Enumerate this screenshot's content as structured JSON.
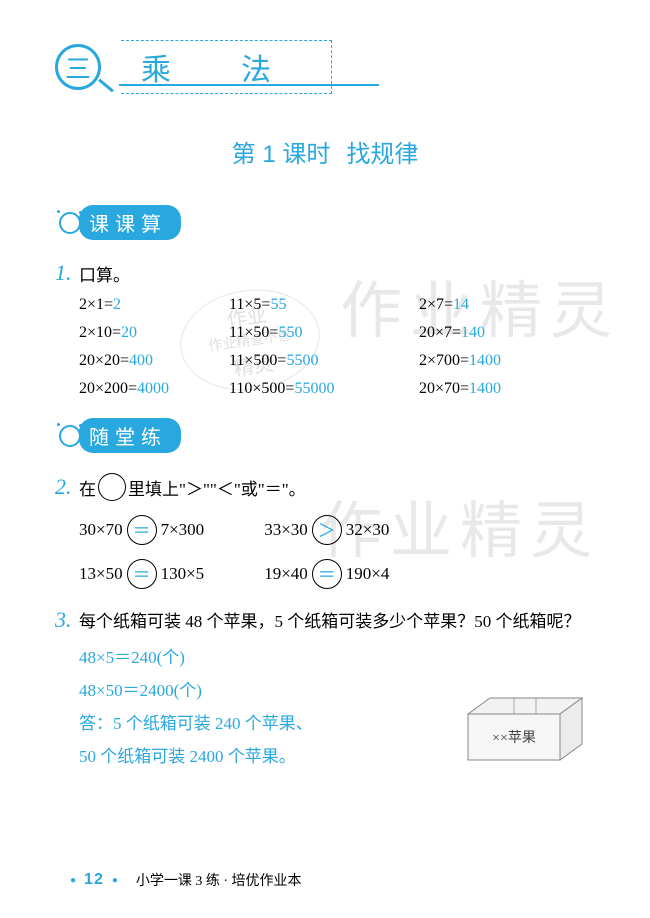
{
  "colors": {
    "accent": "#29a7df",
    "answer": "#29a7df",
    "text": "#000000",
    "watermark": "#e8e8e8"
  },
  "chapter": {
    "number": "三",
    "title": "乘　法"
  },
  "lesson": {
    "title_prefix": "第 1 课时",
    "title_main": "找规律"
  },
  "sections": {
    "kekesuan": "课课算",
    "suitanglian": "随堂练"
  },
  "q1": {
    "label": "1.",
    "prompt": "口算。",
    "rows": [
      [
        {
          "expr": "2×1=",
          "ans": "2"
        },
        {
          "expr": "11×5=",
          "ans": "55"
        },
        {
          "expr": "2×7=",
          "ans": "14"
        }
      ],
      [
        {
          "expr": "2×10=",
          "ans": "20"
        },
        {
          "expr": "11×50=",
          "ans": "550"
        },
        {
          "expr": "20×7=",
          "ans": "140"
        }
      ],
      [
        {
          "expr": "20×20=",
          "ans": "400"
        },
        {
          "expr": "11×500=",
          "ans": "5500"
        },
        {
          "expr": "2×700=",
          "ans": "1400"
        }
      ],
      [
        {
          "expr": "20×200=",
          "ans": "4000"
        },
        {
          "expr": "110×500=",
          "ans": "55000"
        },
        {
          "expr": "20×70=",
          "ans": "1400"
        }
      ]
    ]
  },
  "q2": {
    "label": "2.",
    "prompt_pre": "在",
    "prompt_post": "里填上\"＞\"\"＜\"或\"＝\"。",
    "rows": [
      [
        {
          "left": "30×70",
          "sym": "＝",
          "right": "7×300"
        },
        {
          "left": "33×30",
          "sym": "＞",
          "right": "32×30"
        }
      ],
      [
        {
          "left": "13×50",
          "sym": "＝",
          "right": "130×5"
        },
        {
          "left": "19×40",
          "sym": "＝",
          "right": "190×4"
        }
      ]
    ]
  },
  "q3": {
    "label": "3.",
    "prompt": "每个纸箱可装 48 个苹果，5 个纸箱可装多少个苹果？50 个纸箱呢？",
    "lines": [
      "48×5＝240(个)",
      "48×50＝2400(个)",
      "答：5 个纸箱可装 240 个苹果、",
      "50 个纸箱可装 2400 个苹果。"
    ],
    "box_label": "××苹果"
  },
  "footer": {
    "page": "12",
    "text": "小学一课 3 练 · 培优作业本"
  },
  "watermarks": {
    "w1": "作业精灵",
    "w2": "作业精灵",
    "stamp1": "作业",
    "stamp2": "作业精查不惑",
    "stamp3": "精灵"
  }
}
